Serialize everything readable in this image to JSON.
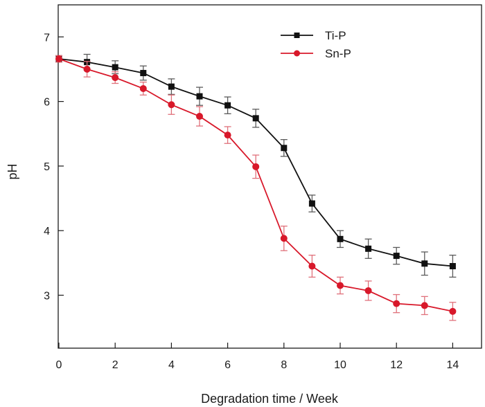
{
  "chart_data": {
    "type": "line",
    "title": "",
    "xlabel": "Degradation time / Week",
    "ylabel": "pH",
    "xlim": [
      0,
      15
    ],
    "ylim": [
      2.2,
      7.5
    ],
    "x_ticks": [
      "0",
      "2",
      "4",
      "6",
      "8",
      "10",
      "12",
      "14"
    ],
    "y_ticks": [
      "3",
      "4",
      "5",
      "6",
      "7"
    ],
    "grid": false,
    "legend_position": "top-right",
    "x": [
      0,
      1,
      2,
      3,
      4,
      5,
      6,
      7,
      8,
      9,
      10,
      11,
      12,
      13,
      14
    ],
    "series": [
      {
        "name": "Ti-P",
        "color": "#111111",
        "marker": "square",
        "values": [
          6.66,
          6.61,
          6.53,
          6.44,
          6.23,
          6.08,
          5.94,
          5.74,
          5.28,
          4.42,
          3.87,
          3.72,
          3.61,
          3.49,
          3.45
        ],
        "errors": [
          0.05,
          0.12,
          0.1,
          0.11,
          0.12,
          0.14,
          0.13,
          0.14,
          0.13,
          0.13,
          0.13,
          0.15,
          0.13,
          0.18,
          0.17
        ]
      },
      {
        "name": "Sn-P",
        "color": "#d8182a",
        "marker": "circle",
        "values": [
          6.66,
          6.5,
          6.37,
          6.2,
          5.95,
          5.77,
          5.48,
          4.99,
          3.88,
          3.45,
          3.15,
          3.07,
          2.87,
          2.84,
          2.75
        ],
        "errors": [
          0.05,
          0.12,
          0.09,
          0.1,
          0.15,
          0.15,
          0.13,
          0.18,
          0.19,
          0.17,
          0.13,
          0.15,
          0.14,
          0.14,
          0.14
        ]
      }
    ]
  }
}
